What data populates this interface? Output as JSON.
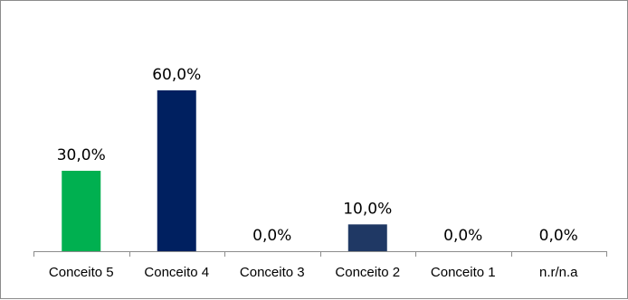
{
  "chart_data": {
    "type": "bar",
    "categories": [
      "Conceito 5",
      "Conceito 4",
      "Conceito 3",
      "Conceito 2",
      "Conceito 1",
      "n.r/n.a"
    ],
    "values": [
      30.0,
      60.0,
      0.0,
      10.0,
      0.0,
      0.0
    ],
    "data_labels": [
      "30,0%",
      "60,0%",
      "0,0%",
      "10,0%",
      "0,0%",
      "0,0%"
    ],
    "colors": [
      "#00b050",
      "#002060",
      "#002060",
      "#1f3864",
      "#002060",
      "#002060"
    ],
    "ylim": [
      0,
      70
    ],
    "grid": false,
    "legend": "none",
    "title": "",
    "xlabel": "",
    "ylabel": ""
  }
}
